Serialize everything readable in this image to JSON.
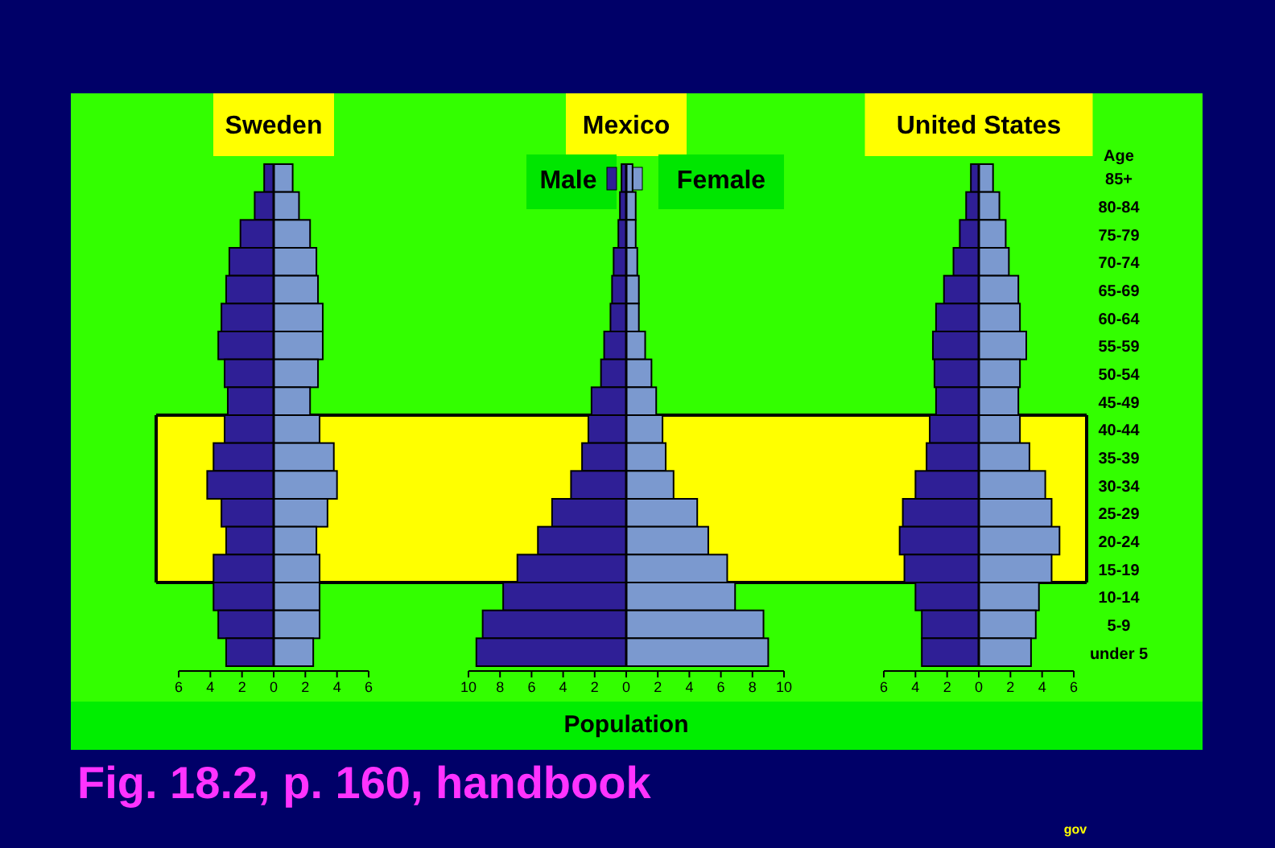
{
  "chart_data": [
    {
      "type": "bar",
      "title": "Sweden",
      "orientation": "horizontal",
      "stacked": true,
      "tick_labels": "x",
      "categories": [
        null,
        null,
        null,
        null,
        null,
        null,
        null,
        null,
        null,
        null,
        null,
        null,
        null,
        null,
        null,
        null,
        null,
        null
      ],
      "series": [
        {
          "color": "#2f1f96",
          "values": [
            -0.6,
            -1.2,
            -2.1,
            -2.8,
            -3.0,
            -3.3,
            -3.5,
            -3.1,
            -2.9,
            -3.1,
            -3.8,
            -4.2,
            -3.3,
            -3.0,
            -3.8,
            -3.8,
            -3.5,
            -3.0
          ]
        },
        {
          "color": "#7b99cf",
          "values": [
            1.2,
            1.6,
            2.3,
            2.7,
            2.8,
            3.1,
            3.1,
            2.8,
            2.3,
            2.9,
            3.8,
            4.0,
            3.4,
            2.7,
            2.9,
            2.9,
            2.9,
            2.5
          ]
        }
      ],
      "xlim": [
        -6,
        6
      ],
      "xticks": [
        {
          "value": -6,
          "label": "6"
        },
        {
          "value": -4,
          "label": "4"
        },
        {
          "value": -2,
          "label": "2"
        },
        0,
        2,
        4,
        6
      ],
      "annotations": [
        "Fig. 18.2, p. 160, handbook"
      ]
    },
    {
      "type": "bar",
      "title": "Mexico",
      "xlabel": "Population",
      "orientation": "horizontal",
      "stacked": true,
      "tick_labels": "x",
      "legend": "top",
      "categories": [
        null,
        null,
        null,
        null,
        null,
        null,
        null,
        null,
        null,
        null,
        null,
        null,
        null,
        null,
        null,
        null,
        null,
        null
      ],
      "series": [
        {
          "name": "Male",
          "color": "#2f1f96",
          "values": [
            -0.3,
            -0.4,
            -0.5,
            -0.8,
            -0.9,
            -1.0,
            -1.4,
            -1.6,
            -2.2,
            -2.4,
            -2.8,
            -3.5,
            -4.7,
            -5.6,
            -6.9,
            -7.8,
            -9.1,
            -9.5
          ]
        },
        {
          "name": "Female",
          "color": "#7b99cf",
          "values": [
            0.4,
            0.6,
            0.6,
            0.7,
            0.8,
            0.8,
            1.2,
            1.6,
            1.9,
            2.3,
            2.5,
            3.0,
            4.5,
            5.2,
            6.4,
            6.9,
            8.7,
            9.0
          ]
        }
      ],
      "xlim": [
        -10,
        10
      ],
      "xticks": [
        {
          "value": -10,
          "label": "10"
        },
        {
          "value": -8,
          "label": "8"
        },
        {
          "value": -6,
          "label": "6"
        },
        {
          "value": -4,
          "label": "4"
        },
        {
          "value": -2,
          "label": "2"
        },
        0,
        2,
        4,
        6,
        8,
        10
      ]
    },
    {
      "type": "bar",
      "title": "United States",
      "ylabel": "Age",
      "orientation": "horizontal",
      "stacked": true,
      "categories": [
        "85+",
        "80-84",
        "75-79",
        "70-74",
        "65-69",
        "60-64",
        "55-59",
        "50-54",
        "45-49",
        "40-44",
        "35-39",
        "30-34",
        "25-29",
        "20-24",
        "15-19",
        "10-14",
        "5-9",
        "under 5"
      ],
      "series": [
        {
          "color": "#2f1f96",
          "values": [
            -0.5,
            -0.8,
            -1.2,
            -1.6,
            -2.2,
            -2.7,
            -2.9,
            -2.8,
            -2.7,
            -3.1,
            -3.3,
            -4.0,
            -4.8,
            -5.0,
            -4.7,
            -4.0,
            -3.6,
            -3.6
          ]
        },
        {
          "color": "#7b99cf",
          "values": [
            0.9,
            1.3,
            1.7,
            1.9,
            2.5,
            2.6,
            3.0,
            2.6,
            2.5,
            2.6,
            3.2,
            4.2,
            4.6,
            5.1,
            4.6,
            3.8,
            3.6,
            3.3
          ]
        }
      ],
      "xlim": [
        -6,
        6
      ],
      "xticks": [
        {
          "value": -6,
          "label": "6"
        },
        {
          "value": -4,
          "label": "4"
        },
        {
          "value": -2,
          "label": "2"
        },
        0,
        2,
        4,
        6
      ],
      "bands": [
        {
          "axis": "y",
          "from": "15-19",
          "to": "40-44",
          "color": "#ffff00"
        }
      ],
      "annotations": [
        "gov"
      ]
    }
  ]
}
